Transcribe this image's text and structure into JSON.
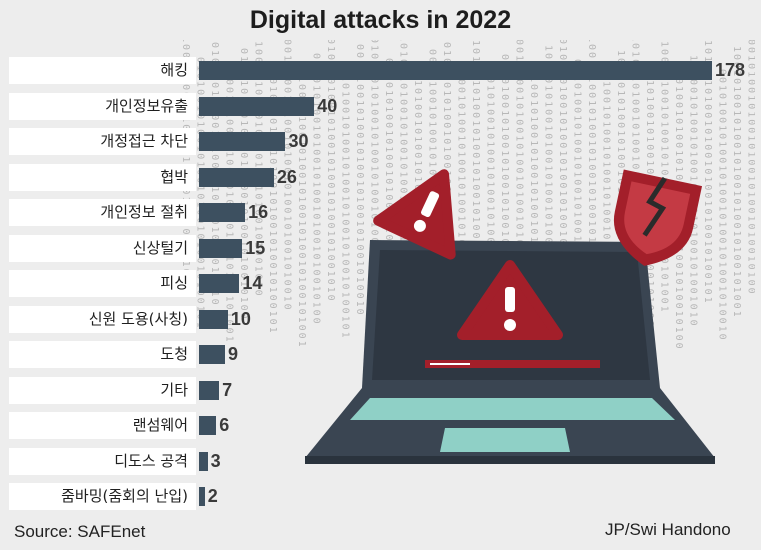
{
  "chart_data": {
    "type": "bar",
    "title": "Digital attacks in 2022",
    "categories": [
      "해킹",
      "개인정보유출",
      "개정접근 차단",
      "협박",
      "개인정보 절취",
      "신상털기",
      "피싱",
      "신원 도용(사칭)",
      "도청",
      "기타",
      "랜섬웨어",
      "디도스 공격",
      "줌바밍(줌회의 난입)"
    ],
    "values": [
      178,
      40,
      30,
      26,
      16,
      15,
      14,
      10,
      9,
      7,
      6,
      3,
      2
    ],
    "orientation": "horizontal",
    "grid": false,
    "bar_color": "#3d5060"
  },
  "footer": {
    "source": "Source: SAFEnet",
    "credit": "JP/Swi Handono"
  },
  "illustration": {
    "laptop_screen_color": "#3a4552",
    "warning_color": "#a31f2a",
    "keyboard_color": "#8fd0c6",
    "icons": [
      "warning-icon",
      "shield-broken-icon"
    ]
  }
}
